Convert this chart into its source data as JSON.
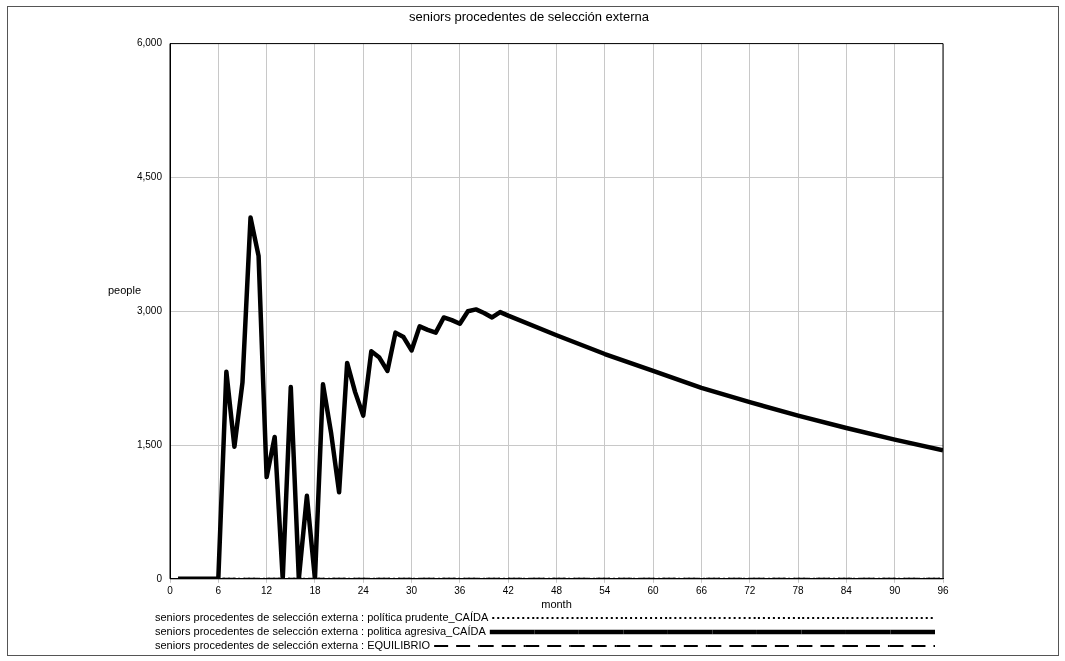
{
  "chart_data": {
    "type": "line",
    "title": "seniors procedentes de selección externa",
    "xlabel": "month",
    "ylabel": "people",
    "xlim": [
      0,
      96
    ],
    "xticks": [
      0,
      6,
      12,
      18,
      24,
      30,
      36,
      42,
      48,
      54,
      60,
      66,
      72,
      78,
      84,
      90,
      96
    ],
    "ylim": [
      0,
      6000
    ],
    "yticks": [
      0,
      {
        "value": 1500,
        "label": "1,500"
      },
      {
        "value": 3000,
        "label": "3,000"
      },
      {
        "value": 4500,
        "label": "4,500"
      },
      {
        "value": 6000,
        "label": "6,000"
      }
    ],
    "grid": true,
    "legend": "bottom",
    "marker": "none",
    "series": [
      {
        "name": "seniors procedentes de selección externa : política prudente_CAÍDA",
        "color": "#000000",
        "line_style": "dotted",
        "x": [
          1,
          96
        ],
        "values": [
          0,
          0
        ]
      },
      {
        "name": "seniors procedentes de selección externa : politica agresiva_CAÍDA",
        "color": "#000000",
        "line_style": "solid",
        "x": [
          1,
          2,
          3,
          4,
          5,
          6,
          7,
          8,
          9,
          10,
          11,
          12,
          13,
          14,
          15,
          16,
          17,
          18,
          19,
          20,
          21,
          22,
          23,
          24,
          25,
          26,
          27,
          28,
          29,
          30,
          31,
          32,
          33,
          34,
          35,
          36,
          37,
          38,
          39,
          40,
          41,
          42,
          48,
          54,
          60,
          66,
          72,
          78,
          84,
          90,
          96
        ],
        "values": [
          0,
          0,
          0,
          0,
          0,
          0,
          2320,
          1480,
          2200,
          4050,
          3620,
          1140,
          1590,
          0,
          2150,
          0,
          930,
          0,
          2180,
          1640,
          970,
          2420,
          2090,
          1830,
          2550,
          2480,
          2330,
          2760,
          2710,
          2560,
          2830,
          2790,
          2760,
          2930,
          2900,
          2860,
          3000,
          3020,
          2980,
          2930,
          2990,
          2950,
          2730,
          2520,
          2330,
          2140,
          1980,
          1830,
          1690,
          1560,
          1440
        ]
      },
      {
        "name": "seniors procedentes de selección externa : EQUILIBRIO",
        "color": "#000000",
        "line_style": "dashed",
        "x": [
          1,
          96
        ],
        "values": [
          0,
          0
        ]
      }
    ]
  }
}
